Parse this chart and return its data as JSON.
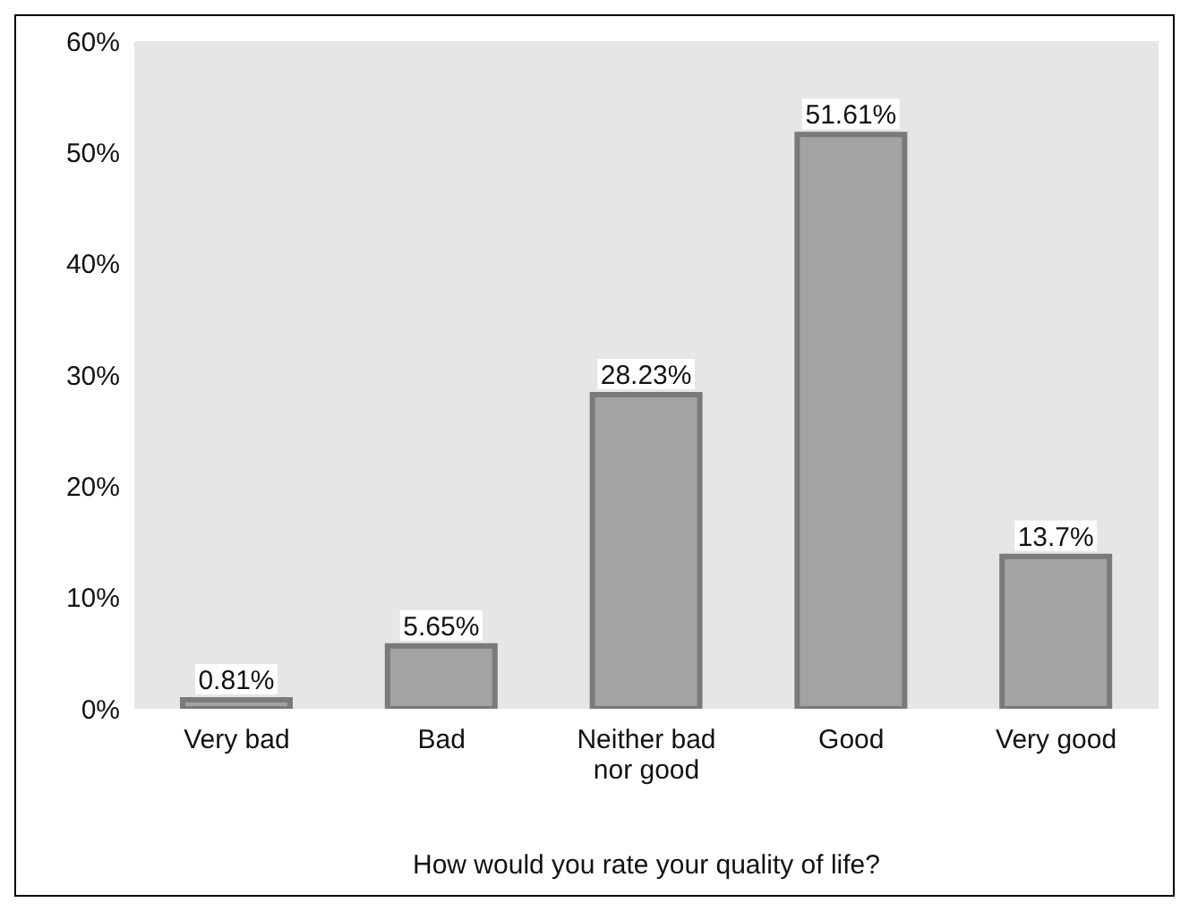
{
  "chart_data": {
    "type": "bar",
    "xlabel": "How would you rate your quality of life?",
    "categories": [
      "Very bad",
      "Bad",
      "Neither bad nor good",
      "Good",
      "Very good"
    ],
    "values": [
      0.81,
      5.65,
      28.23,
      51.61,
      13.7
    ],
    "value_labels": [
      "0.81%",
      "5.65%",
      "28.23%",
      "51.61%",
      "13.7%"
    ],
    "color": "#a3a3a3",
    "ylim": [
      0,
      60
    ],
    "yticks": [
      {
        "value": 0,
        "label": "0%"
      },
      {
        "value": 10,
        "label": "10%"
      },
      {
        "value": 20,
        "label": "20%"
      },
      {
        "value": 30,
        "label": "30%"
      },
      {
        "value": 40,
        "label": "40%"
      },
      {
        "value": 50,
        "label": "50%"
      },
      {
        "value": 60,
        "label": "60%"
      }
    ],
    "grid": false
  }
}
